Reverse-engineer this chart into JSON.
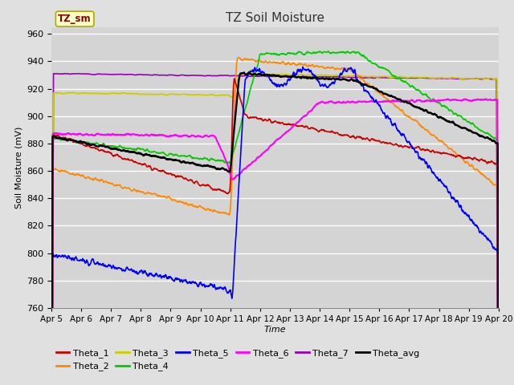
{
  "title": "TZ Soil Moisture",
  "xlabel": "Time",
  "ylabel": "Soil Moisture (mV)",
  "ylim": [
    760,
    965
  ],
  "yticks": [
    760,
    780,
    800,
    820,
    840,
    860,
    880,
    900,
    920,
    940,
    960
  ],
  "date_labels": [
    "Apr 5",
    "Apr 6",
    "Apr 7",
    "Apr 8",
    "Apr 9",
    "Apr 10",
    "Apr 11",
    "Apr 12",
    "Apr 13",
    "Apr 14",
    "Apr 15",
    "Apr 16",
    "Apr 17",
    "Apr 18",
    "Apr 19",
    "Apr 20"
  ],
  "legend_label": "TZ_sm",
  "series_colors": {
    "Theta_1": "#cc0000",
    "Theta_2": "#ff8800",
    "Theta_3": "#cccc00",
    "Theta_4": "#00cc00",
    "Theta_5": "#0000ff",
    "Theta_6": "#ff00ff",
    "Theta_7": "#9900bb",
    "Theta_avg": "#000000"
  },
  "bg_color": "#e0e0e0",
  "plot_bg_color": "#d4d4d4",
  "grid_color": "#ffffff",
  "legend_box_facecolor": "#ffffcc",
  "legend_box_edgecolor": "#aaaa00"
}
